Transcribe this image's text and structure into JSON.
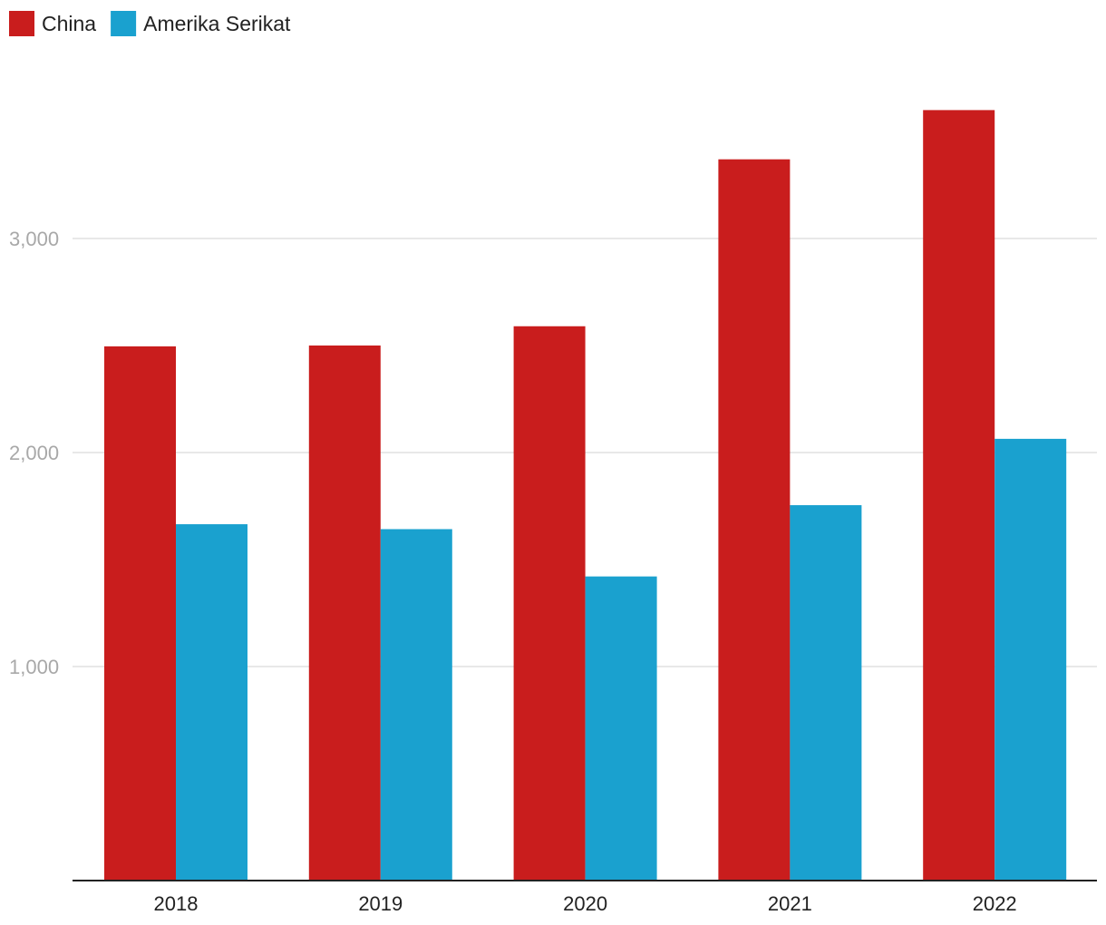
{
  "chart_data": {
    "type": "bar",
    "categories": [
      "2018",
      "2019",
      "2020",
      "2021",
      "2022"
    ],
    "series": [
      {
        "name": "China",
        "color": "#c91d1d",
        "values": [
          2496,
          2500,
          2590,
          3370,
          3600
        ]
      },
      {
        "name": "Amerika Serikat",
        "color": "#1aa1cf",
        "values": [
          1665,
          1642,
          1421,
          1754,
          2064
        ]
      }
    ],
    "y_ticks": [
      {
        "value": 1000,
        "label": "1,000"
      },
      {
        "value": 2000,
        "label": "2,000"
      },
      {
        "value": 3000,
        "label": "3,000"
      }
    ],
    "ylim": [
      0,
      4000
    ],
    "title": "",
    "xlabel": "",
    "ylabel": "",
    "grid": true,
    "legend_position": "top-left"
  }
}
